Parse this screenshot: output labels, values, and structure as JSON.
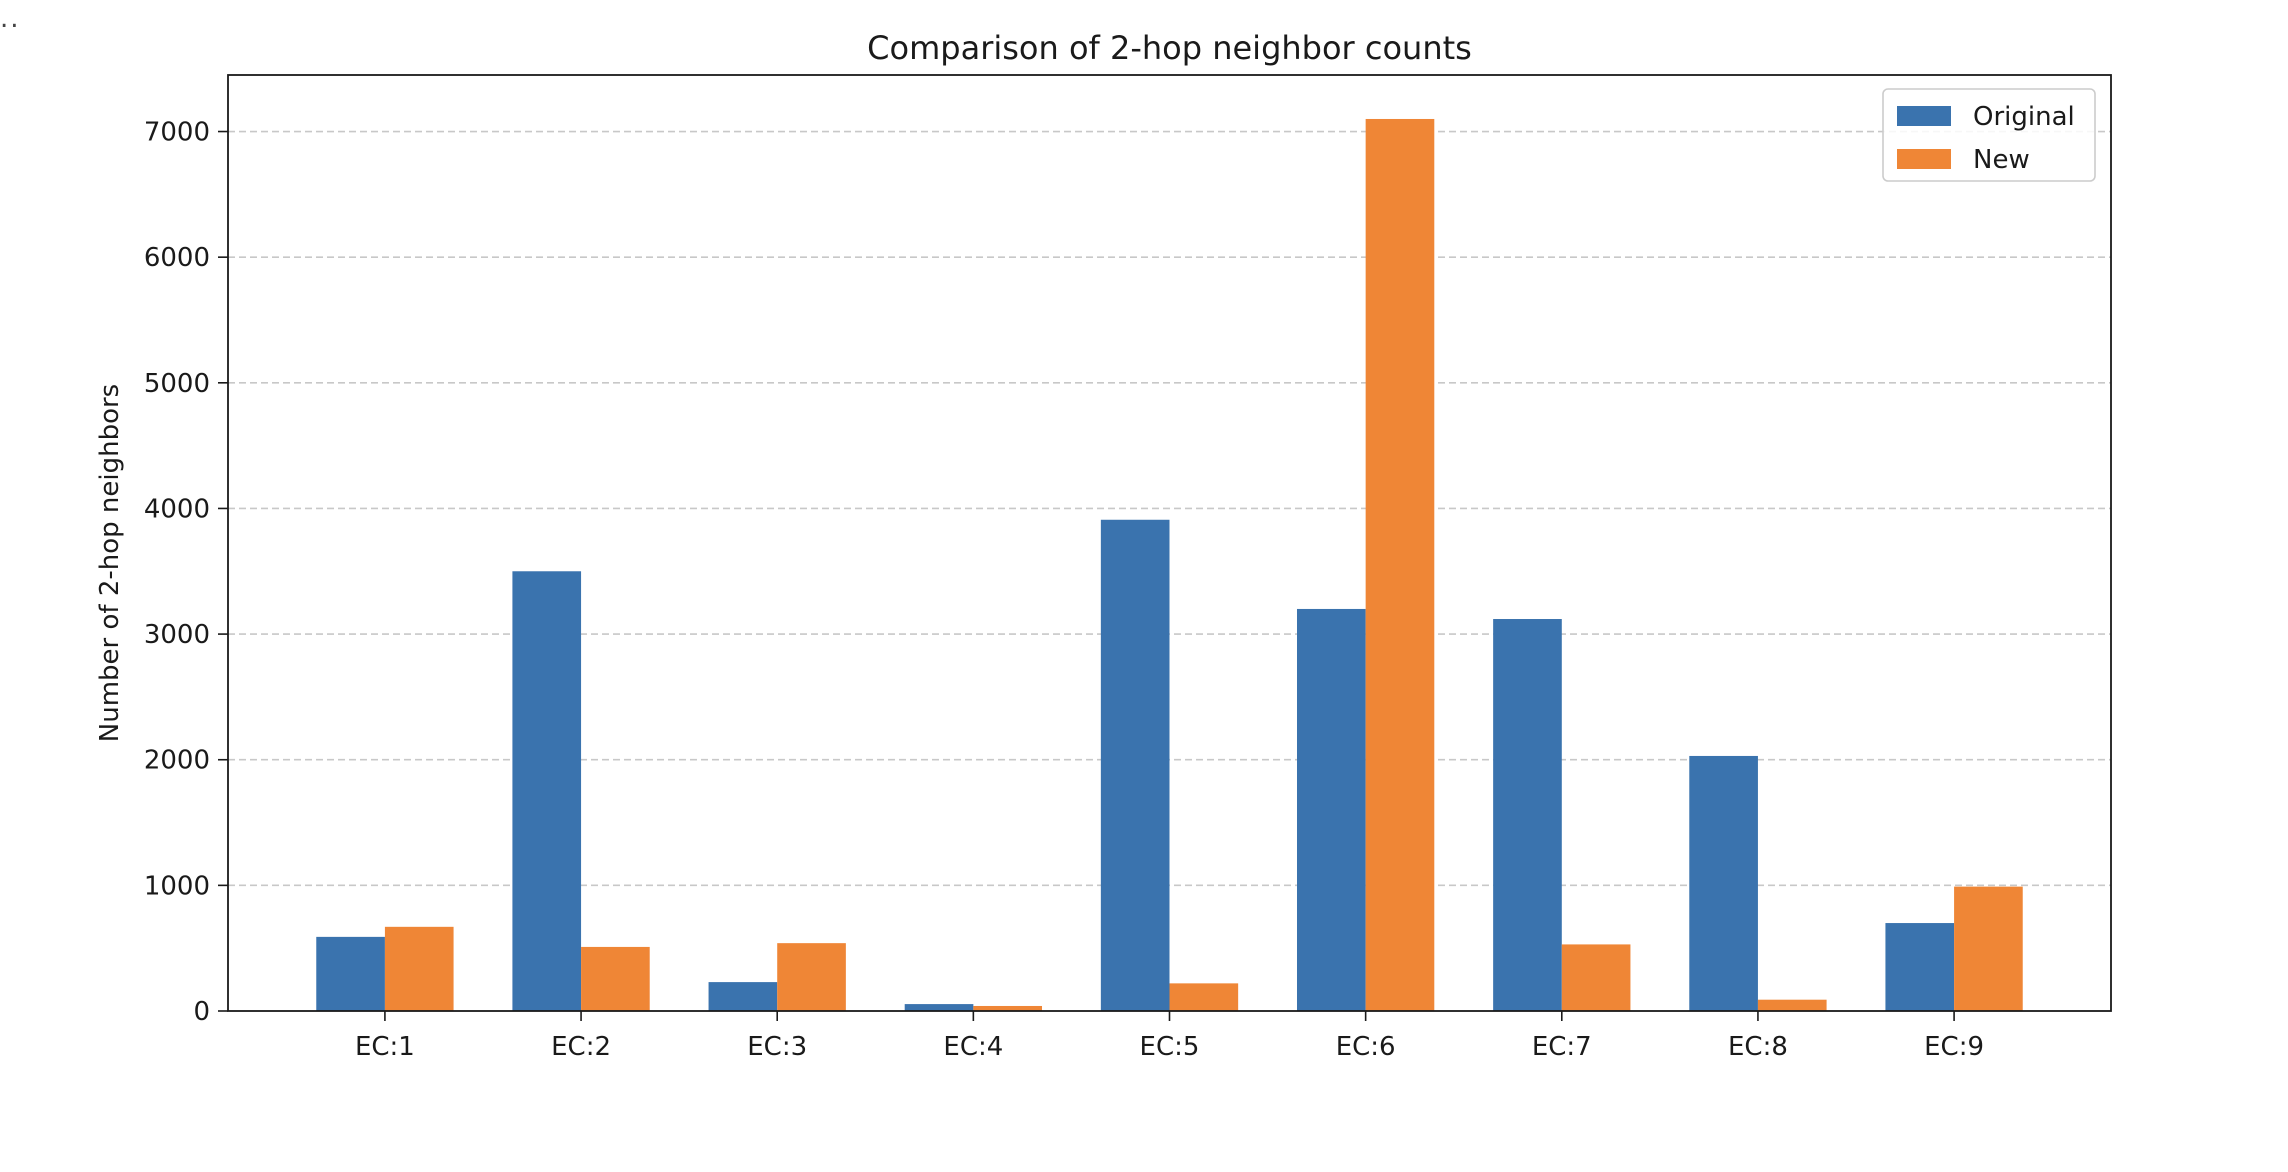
{
  "corner_mark": "..",
  "colors": {
    "original": "#3a73ae",
    "new": "#ef8636",
    "grid": "#c8c8c8",
    "axis": "#1a1a1a"
  },
  "chart_data": {
    "type": "bar",
    "title": "Comparison of 2-hop neighbor counts",
    "xlabel": "",
    "ylabel": "Number of 2-hop neighbors",
    "categories": [
      "EC:1",
      "EC:2",
      "EC:3",
      "EC:4",
      "EC:5",
      "EC:6",
      "EC:7",
      "EC:8",
      "EC:9"
    ],
    "series": [
      {
        "name": "Original",
        "values": [
          590,
          3500,
          230,
          55,
          3910,
          3200,
          3120,
          2030,
          700
        ]
      },
      {
        "name": "New",
        "values": [
          670,
          510,
          540,
          40,
          220,
          7100,
          530,
          90,
          990
        ]
      }
    ],
    "ylim": [
      0,
      7450
    ],
    "yticks": [
      0,
      1000,
      2000,
      3000,
      4000,
      5000,
      6000,
      7000
    ],
    "ytick_labels": [
      "0",
      "1000",
      "2000",
      "3000",
      "4000",
      "5000",
      "6000",
      "7000"
    ],
    "grid": "y-dashed",
    "legend": "top-right"
  }
}
